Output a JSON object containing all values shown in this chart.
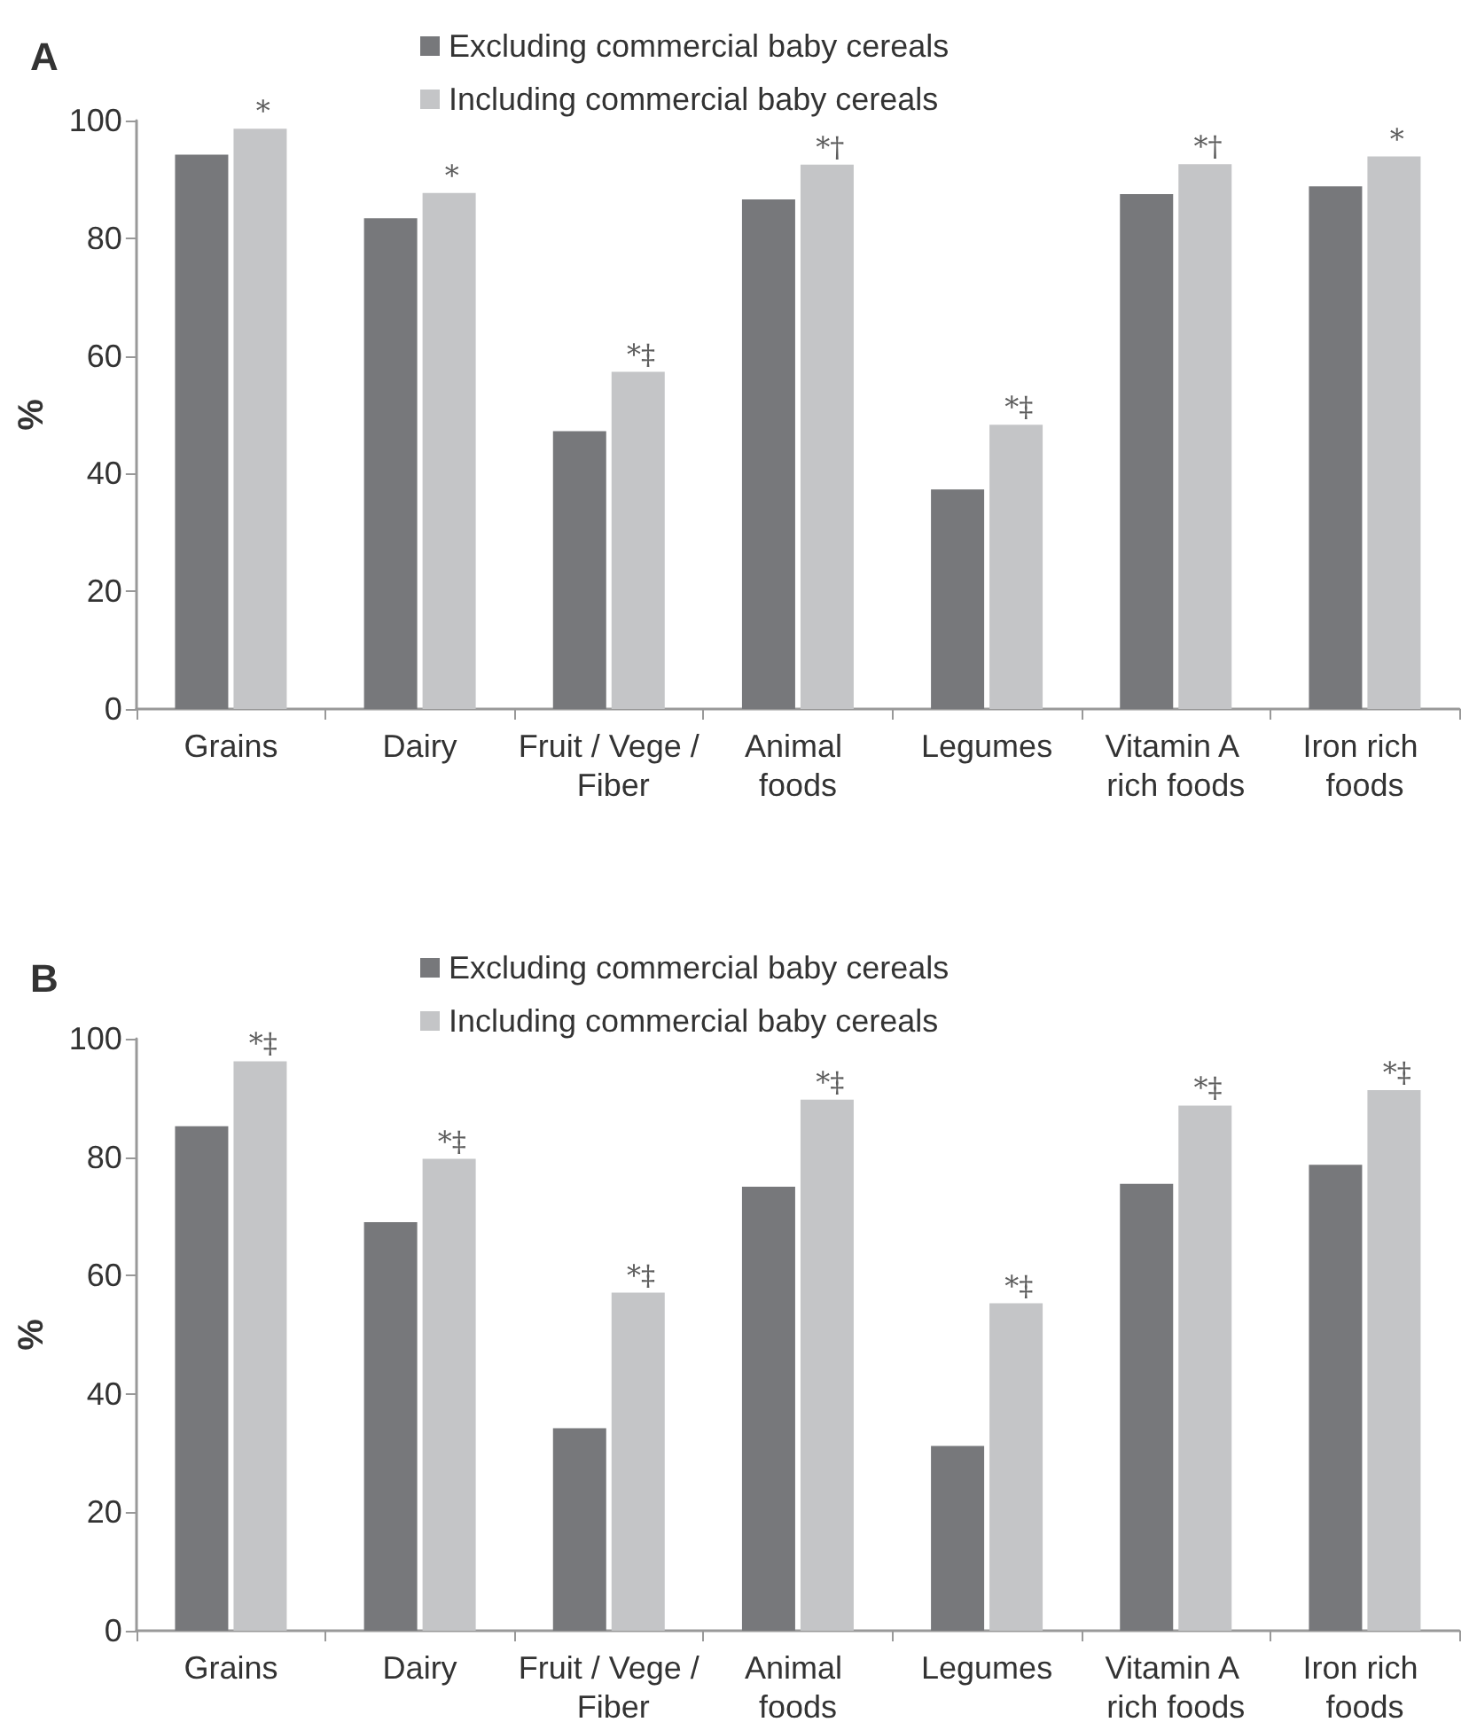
{
  "chart_data": [
    {
      "type": "bar",
      "title": "A",
      "ylabel": "%",
      "categories": [
        "Grains",
        "Dairy",
        "Fruit / Vege / Fiber",
        "Animal foods",
        "Legumes",
        "Vitamin A rich foods",
        "Iron rich foods"
      ],
      "series": [
        {
          "name": "Excluding commercial baby cereals",
          "color": "#77787b",
          "values": [
            94.2,
            83.4,
            47.2,
            86.6,
            37.3,
            87.5,
            88.8
          ]
        },
        {
          "name": "Including commercial baby cereals",
          "color": "#c4c5c7",
          "values": [
            98.6,
            87.7,
            57.3,
            92.5,
            48.3,
            92.6,
            93.9
          ]
        }
      ],
      "ylim": [
        0,
        100
      ],
      "yticks": [
        0,
        20,
        40,
        60,
        80,
        100
      ],
      "grid": false,
      "legend": "top",
      "annotations": [
        {
          "text": "*",
          "x": "Grains",
          "y": 98.6
        },
        {
          "text": "*",
          "x": "Dairy",
          "y": 87.7
        },
        {
          "text": "*‡",
          "x": "Fruit / Vege / Fiber",
          "y": 57.3
        },
        {
          "text": "*†",
          "x": "Animal foods",
          "y": 92.5
        },
        {
          "text": "*‡",
          "x": "Legumes",
          "y": 48.3
        },
        {
          "text": "*†",
          "x": "Vitamin A rich foods",
          "y": 92.6
        },
        {
          "text": "*",
          "x": "Iron rich foods",
          "y": 93.9
        }
      ]
    },
    {
      "type": "bar",
      "title": "B",
      "ylabel": "%",
      "categories": [
        "Grains",
        "Dairy",
        "Fruit / Vege / Fiber",
        "Animal foods",
        "Legumes",
        "Vitamin A rich foods",
        "Iron rich foods"
      ],
      "series": [
        {
          "name": "Excluding commercial baby cereals",
          "color": "#77787b",
          "values": [
            85.2,
            69.0,
            34.2,
            75.0,
            31.2,
            75.5,
            78.7
          ]
        },
        {
          "name": "Including commercial baby cereals",
          "color": "#c4c5c7",
          "values": [
            96.2,
            79.7,
            57.1,
            89.7,
            55.3,
            88.7,
            91.3
          ]
        }
      ],
      "ylim": [
        0,
        100
      ],
      "yticks": [
        0,
        20,
        40,
        60,
        80,
        100
      ],
      "grid": false,
      "legend": "top",
      "annotations": [
        {
          "text": "*‡",
          "x": "Grains",
          "y": 96.2
        },
        {
          "text": "*‡",
          "x": "Dairy",
          "y": 79.7
        },
        {
          "text": "*‡",
          "x": "Fruit / Vege / Fiber",
          "y": 57.1
        },
        {
          "text": "*‡",
          "x": "Animal foods",
          "y": 89.7
        },
        {
          "text": "*‡",
          "x": "Legumes",
          "y": 55.3
        },
        {
          "text": "*‡",
          "x": "Vitamin A rich foods",
          "y": 88.7
        },
        {
          "text": "*‡",
          "x": "Iron rich foods",
          "y": 91.3
        }
      ]
    }
  ]
}
